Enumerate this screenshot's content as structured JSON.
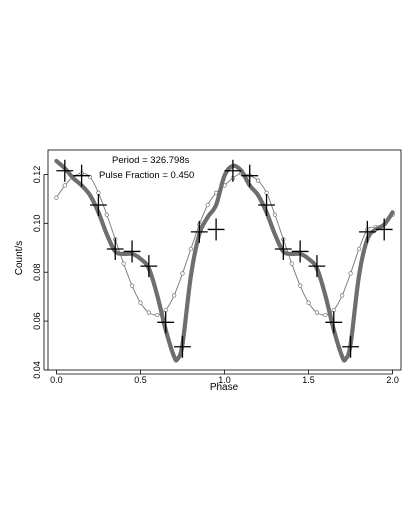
{
  "chart_data": {
    "type": "line",
    "title": "",
    "xlabel": "Phase",
    "ylabel": "Count/s",
    "xlim": [
      -0.05,
      2.05
    ],
    "ylim": [
      0.04,
      0.13
    ],
    "xticks": [
      0.0,
      0.5,
      1.0,
      1.5,
      2.0
    ],
    "xtick_labels": [
      "0.0",
      "0.5",
      "1.0",
      "1.5",
      "2.0"
    ],
    "yticks": [
      0.04,
      0.06,
      0.08,
      0.1,
      0.12
    ],
    "ytick_labels": [
      "0.04",
      "0.06",
      "0.08",
      "0.10",
      "0.12"
    ],
    "grid": false,
    "annotations": [
      {
        "text": "Period = 326.798s"
      },
      {
        "text": "Pulse Fraction = 0.450"
      }
    ],
    "colors": {
      "data": "#000000",
      "smooth": "#6e6e6e",
      "sine": "#777777",
      "axes": "#000000"
    },
    "data_points": {
      "x": [
        0.05,
        0.15,
        0.25,
        0.35,
        0.45,
        0.55,
        0.65,
        0.75,
        0.85,
        0.95,
        1.05,
        1.15,
        1.25,
        1.35,
        1.45,
        1.55,
        1.65,
        1.75,
        1.85,
        1.95
      ],
      "y": [
        0.1215,
        0.1195,
        0.1075,
        0.0895,
        0.0885,
        0.0825,
        0.0595,
        0.0495,
        0.0965,
        0.0975,
        0.1215,
        0.1195,
        0.1075,
        0.0895,
        0.0885,
        0.0825,
        0.0595,
        0.0495,
        0.0965,
        0.0975
      ],
      "xerr": 0.05,
      "yerr": 0.0045
    },
    "sine_model": {
      "x": [
        0.0,
        0.05,
        0.1,
        0.15,
        0.2,
        0.25,
        0.3,
        0.35,
        0.4,
        0.45,
        0.5,
        0.55,
        0.6,
        0.65,
        0.7,
        0.75,
        0.8,
        0.85,
        0.9,
        0.95,
        1.0,
        1.05,
        1.1,
        1.15,
        1.2,
        1.25,
        1.3,
        1.35,
        1.4,
        1.45,
        1.5,
        1.55,
        1.6,
        1.65,
        1.7,
        1.75,
        1.8,
        1.85,
        1.9,
        1.95,
        2.0
      ],
      "y": [
        0.1105,
        0.1155,
        0.119,
        0.1205,
        0.119,
        0.1125,
        0.1035,
        0.0935,
        0.0835,
        0.0745,
        0.0675,
        0.0635,
        0.0625,
        0.0645,
        0.0705,
        0.0795,
        0.0895,
        0.0995,
        0.1075,
        0.1125,
        0.1155,
        0.1185,
        0.1205,
        0.1195,
        0.1175,
        0.1125,
        0.1035,
        0.0935,
        0.0835,
        0.0745,
        0.0675,
        0.0635,
        0.0625,
        0.0645,
        0.0705,
        0.0795,
        0.0895,
        0.0975,
        0.0985,
        0.0995,
        0.1035
      ]
    },
    "smooth_curve": {
      "x": [
        0.0,
        0.05,
        0.1,
        0.15,
        0.2,
        0.25,
        0.3,
        0.35,
        0.4,
        0.45,
        0.5,
        0.55,
        0.6,
        0.65,
        0.7,
        0.72,
        0.75,
        0.8,
        0.85,
        0.9,
        0.95,
        1.0,
        1.05,
        1.1,
        1.15,
        1.2,
        1.25,
        1.3,
        1.35,
        1.4,
        1.45,
        1.5,
        1.55,
        1.6,
        1.65,
        1.7,
        1.72,
        1.75,
        1.8,
        1.85,
        1.9,
        1.95,
        2.0
      ],
      "y": [
        0.1255,
        0.1225,
        0.1185,
        0.1155,
        0.1115,
        0.1045,
        0.0955,
        0.0885,
        0.0875,
        0.0875,
        0.0855,
        0.0815,
        0.0705,
        0.0565,
        0.0455,
        0.0445,
        0.0505,
        0.0785,
        0.0955,
        0.1025,
        0.1075,
        0.1195,
        0.1235,
        0.1215,
        0.1155,
        0.1115,
        0.1045,
        0.0955,
        0.0885,
        0.0875,
        0.0875,
        0.0855,
        0.0815,
        0.0705,
        0.0565,
        0.0455,
        0.0445,
        0.0505,
        0.0785,
        0.0935,
        0.0975,
        0.0995,
        0.1045
      ]
    }
  }
}
